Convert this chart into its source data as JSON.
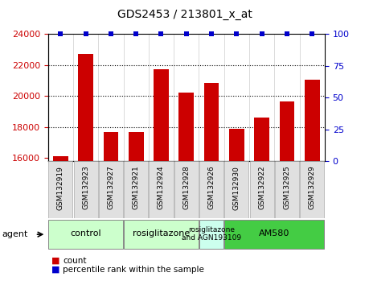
{
  "title": "GDS2453 / 213801_x_at",
  "samples": [
    "GSM132919",
    "GSM132923",
    "GSM132927",
    "GSM132921",
    "GSM132924",
    "GSM132928",
    "GSM132926",
    "GSM132930",
    "GSM132922",
    "GSM132925",
    "GSM132929"
  ],
  "counts": [
    16100,
    22700,
    17650,
    17650,
    21750,
    20250,
    20850,
    17900,
    18600,
    19650,
    21050
  ],
  "ylim_left": [
    15800,
    24000
  ],
  "ylim_right": [
    0,
    100
  ],
  "yticks_left": [
    16000,
    18000,
    20000,
    22000,
    24000
  ],
  "yticks_right": [
    0,
    25,
    50,
    75,
    100
  ],
  "bar_color": "#cc0000",
  "dot_color": "#0000cc",
  "bar_width": 0.6,
  "groups": [
    {
      "label": "control",
      "start": 0,
      "end": 3,
      "color": "#ccffcc"
    },
    {
      "label": "rosiglitazone",
      "start": 3,
      "end": 6,
      "color": "#ccffcc"
    },
    {
      "label": "rosiglitazone\nand AGN193109",
      "start": 6,
      "end": 7,
      "color": "#ccffee"
    },
    {
      "label": "AM580",
      "start": 7,
      "end": 11,
      "color": "#44cc44"
    }
  ],
  "agent_label": "agent",
  "legend_count_label": "count",
  "legend_pct_label": "percentile rank within the sample",
  "grid_dotted_at": [
    18000,
    20000,
    22000
  ],
  "bar_color_left": "#cc0000",
  "tick_color_left": "#cc0000",
  "tick_color_right": "#0000cc",
  "background_color": "#ffffff",
  "base_value": 15800,
  "dot_percentile": 100,
  "xlabel_gray": "#d0d0d0",
  "col_divider_color": "#cccccc"
}
